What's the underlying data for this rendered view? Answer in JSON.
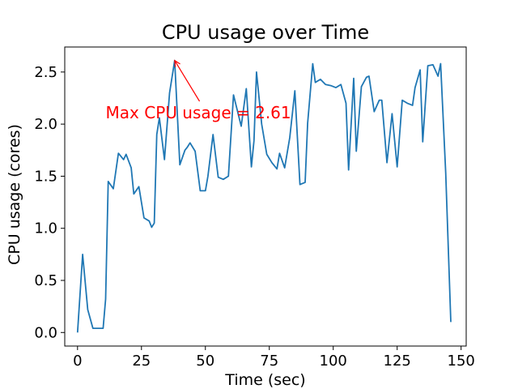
{
  "chart_data": {
    "type": "line",
    "title": "CPU usage over Time",
    "xlabel": "Time (sec)",
    "ylabel": "CPU usage (cores)",
    "xlim": [
      -5,
      152
    ],
    "ylim": [
      -0.13,
      2.74
    ],
    "xticks": [
      0,
      25,
      50,
      75,
      100,
      125,
      150
    ],
    "yticks": [
      0.0,
      0.5,
      1.0,
      1.5,
      2.0,
      2.5
    ],
    "ytick_labels": [
      "0.0",
      "0.5",
      "1.0",
      "1.5",
      "2.0",
      "2.5"
    ],
    "grid": false,
    "line_color": "#1f77b4",
    "series": [
      {
        "x": [
          0,
          2,
          4,
          6,
          8,
          10,
          11,
          12,
          14,
          16,
          18,
          19,
          21,
          22,
          24,
          26,
          28,
          29,
          30,
          31,
          32,
          34,
          36,
          38,
          40,
          42,
          43,
          44,
          46,
          48,
          50,
          51,
          53,
          55,
          57,
          59,
          61,
          64,
          66,
          68,
          69,
          70,
          72,
          74,
          76,
          78,
          79,
          81,
          83,
          85,
          87,
          89,
          90,
          92,
          93,
          95,
          97,
          99,
          101,
          103,
          105,
          106,
          108,
          109,
          111,
          113,
          114,
          116,
          118,
          119,
          121,
          123,
          125,
          127,
          129,
          131,
          132,
          134,
          135,
          137,
          139,
          141,
          142,
          144,
          146
        ],
        "y": [
          0.0,
          0.75,
          0.22,
          0.04,
          0.04,
          0.04,
          0.32,
          1.45,
          1.38,
          1.72,
          1.66,
          1.71,
          1.58,
          1.33,
          1.4,
          1.1,
          1.07,
          1.01,
          1.05,
          1.9,
          2.06,
          1.66,
          2.3,
          2.61,
          1.61,
          1.75,
          1.78,
          1.82,
          1.74,
          1.36,
          1.36,
          1.5,
          1.9,
          1.49,
          1.47,
          1.5,
          2.28,
          1.98,
          2.34,
          1.59,
          1.84,
          2.5,
          2.0,
          1.71,
          1.63,
          1.57,
          1.72,
          1.58,
          1.87,
          2.32,
          1.42,
          1.44,
          2.01,
          2.58,
          2.4,
          2.43,
          2.38,
          2.37,
          2.35,
          2.38,
          2.2,
          1.56,
          2.44,
          1.74,
          2.36,
          2.45,
          2.46,
          2.12,
          2.23,
          2.23,
          1.63,
          2.1,
          1.59,
          2.23,
          2.2,
          2.18,
          2.35,
          2.52,
          1.83,
          2.56,
          2.57,
          2.46,
          2.58,
          1.53,
          0.1
        ]
      }
    ],
    "annotation": {
      "text": "Max CPU usage = 2.61",
      "color": "#ff0000",
      "point": [
        38,
        2.61
      ],
      "text_anchor_data": [
        11,
        2.11
      ]
    }
  }
}
